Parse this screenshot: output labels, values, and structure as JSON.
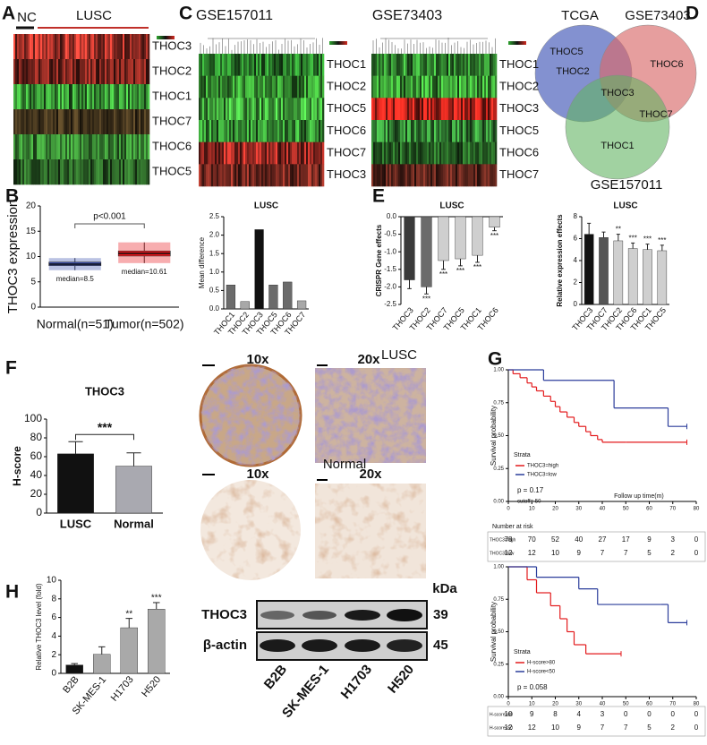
{
  "panel_labels": [
    "A",
    "B",
    "C",
    "D",
    "E",
    "F",
    "G",
    "H"
  ],
  "heatmap_a": {
    "groups": [
      {
        "label": "NC",
        "color": "#111111"
      },
      {
        "label": "LUSC",
        "color": "#c0302a"
      }
    ],
    "rows": [
      {
        "label": "THOC3",
        "color": "#c23a30"
      },
      {
        "label": "THOC2",
        "color": "#8a2a22"
      },
      {
        "label": "THOC1",
        "color": "#3da03a"
      },
      {
        "label": "THOC7",
        "color": "#4a3a20"
      },
      {
        "label": "THOC6",
        "color": "#3a8a35"
      },
      {
        "label": "THOC5",
        "color": "#2f6a2a"
      }
    ]
  },
  "heatmap_c": [
    {
      "title": "GSE157011",
      "rows": [
        {
          "label": "THOC1",
          "color": "#2f8a30"
        },
        {
          "label": "THOC2",
          "color": "#3a9a35"
        },
        {
          "label": "THOC5",
          "color": "#45b040"
        },
        {
          "label": "THOC6",
          "color": "#3a9a38"
        },
        {
          "label": "THOC7",
          "color": "#b03028"
        },
        {
          "label": "THOC3",
          "color": "#8a3026"
        }
      ]
    },
    {
      "title": "GSE73403",
      "rows": [
        {
          "label": "THOC1",
          "color": "#3a9a38"
        },
        {
          "label": "THOC2",
          "color": "#40a83a"
        },
        {
          "label": "THOC3",
          "color": "#d0281f"
        },
        {
          "label": "THOC5",
          "color": "#38903a"
        },
        {
          "label": "THOC6",
          "color": "#2a6a28"
        },
        {
          "label": "THOC7",
          "color": "#6a2a20"
        }
      ]
    }
  ],
  "venn": {
    "sets": [
      {
        "label": "TCGA",
        "color": "#5a6cc0"
      },
      {
        "label": "GSE73403",
        "color": "#d86a6a"
      },
      {
        "label": "GSE157011",
        "color": "#62b462"
      }
    ],
    "items": [
      "THOC5",
      "THOC2",
      "THOC6",
      "THOC3",
      "THOC7",
      "THOC1"
    ]
  },
  "ihc": {
    "mags": [
      "10x",
      "20x"
    ],
    "groups": [
      "LUSC",
      "Normal"
    ]
  },
  "western": {
    "unit": "kDa",
    "bands": [
      {
        "label": "THOC3",
        "size": 39
      },
      {
        "label": "β-actin",
        "size": 45
      }
    ],
    "lanes": [
      "B2B",
      "SK-MES-1",
      "H1703",
      "H520"
    ]
  },
  "chart_data": [
    {
      "type": "box",
      "y_label": "THOC3 expression",
      "categories": [
        "Normal(n=51)",
        "Tumor(n=502)"
      ],
      "colors": [
        "#3a4fb0",
        "#e8141a"
      ],
      "medians": [
        8.5,
        10.61
      ],
      "value_labels": [
        "median=8.5",
        "median=10.61"
      ],
      "q1": [
        8.2,
        10.1
      ],
      "q3": [
        8.9,
        11.1
      ],
      "whisker_low": [
        7.3,
        8.7
      ],
      "whisker_high": [
        9.7,
        12.8
      ],
      "annotation": "p<0.001",
      "ylim": [
        0,
        20
      ],
      "yticks": [
        0,
        5,
        10,
        15,
        20
      ]
    },
    {
      "type": "bar",
      "title": "LUSC",
      "y_label": "Mean difference",
      "categories": [
        "THOC1",
        "THOC2",
        "THOC3",
        "THOC5",
        "THOC6",
        "THOC7"
      ],
      "values": [
        0.65,
        0.2,
        2.15,
        0.65,
        0.73,
        0.22
      ],
      "colors": [
        "#6b6b6b",
        "#a8a8a8",
        "#111111",
        "#6b6b6b",
        "#6b6b6b",
        "#a8a8a8"
      ],
      "ylim": [
        0,
        2.5
      ],
      "yticks": [
        {
          "value": 0,
          "label": "0.0"
        },
        0.5,
        {
          "value": 1,
          "label": "1.0"
        },
        1.5,
        {
          "value": 2,
          "label": "2.0"
        },
        2.5
      ]
    },
    {
      "type": "bar_error",
      "title": "LUSC",
      "y_label": "CRISPR Gene effects",
      "categories": [
        "THOC3",
        "THOC2",
        "THOC7",
        "THOC5",
        "THOC1",
        "THOC6"
      ],
      "values": [
        -1.8,
        -2.0,
        -1.25,
        -1.2,
        -1.1,
        -0.3
      ],
      "errors": [
        0.25,
        0.2,
        0.25,
        0.2,
        0.2,
        0.1
      ],
      "colors": [
        "#3a3a3a",
        "#6b6b6b",
        "#cfcfcf",
        "#cfcfcf",
        "#cfcfcf",
        "#cfcfcf"
      ],
      "stars": [
        null,
        "***",
        "***",
        "***",
        "***",
        "***"
      ],
      "ylim": [
        -2.5,
        0
      ],
      "yticks": [
        {
          "value": 0,
          "label": "0.0"
        },
        -0.5,
        {
          "value": -1,
          "label": "-1.0"
        },
        -1.5,
        {
          "value": -2,
          "label": "-2.0"
        },
        -2.5
      ]
    },
    {
      "type": "bar_error",
      "title": "LUSC",
      "y_label": "Relative expression effects",
      "categories": [
        "THOC3",
        "THOC7",
        "THOC2",
        "THOC6",
        "THOC1",
        "THOC5"
      ],
      "values": [
        6.4,
        6.1,
        5.8,
        5.1,
        5.0,
        4.9
      ],
      "errors": [
        1.0,
        0.5,
        0.6,
        0.5,
        0.5,
        0.5
      ],
      "colors": [
        "#111111",
        "#555555",
        "#cfcfcf",
        "#cfcfcf",
        "#cfcfcf",
        "#cfcfcf"
      ],
      "stars": [
        null,
        null,
        "**",
        "***",
        "***",
        "***"
      ],
      "ylim": [
        0,
        8
      ],
      "yticks": [
        0,
        2,
        4,
        6,
        8
      ]
    },
    {
      "type": "bar_error",
      "title": "THOC3",
      "y_label": "H-score",
      "categories": [
        "LUSC",
        "Normal"
      ],
      "values": [
        63,
        50
      ],
      "errors": [
        13,
        14
      ],
      "colors": [
        "#111111",
        "#a9a9b0"
      ],
      "annotation": "***",
      "ylim": [
        0,
        100
      ],
      "yticks": [
        0,
        20,
        40,
        60,
        80,
        100
      ]
    },
    {
      "type": "km",
      "y_label": "Survival probability",
      "x_label": "Follow up time(m)",
      "legend_title": "Strata",
      "p_text": "p = 0.17",
      "cutoff_text": "cutoff= 50",
      "series": [
        {
          "name": "THOC3=high",
          "color": "#e31a1c",
          "x": [
            0,
            2,
            5,
            8,
            10,
            12,
            15,
            18,
            20,
            22,
            25,
            28,
            30,
            33,
            35,
            38,
            40,
            50,
            76
          ],
          "values": [
            1,
            0.97,
            0.94,
            0.9,
            0.87,
            0.84,
            0.8,
            0.76,
            0.72,
            0.68,
            0.64,
            0.6,
            0.57,
            0.53,
            0.5,
            0.47,
            0.45,
            0.45,
            0.45
          ]
        },
        {
          "name": "THOC3=low",
          "color": "#2b3d9b",
          "x": [
            0,
            15,
            45,
            68,
            76
          ],
          "values": [
            1,
            0.92,
            0.71,
            0.57,
            0.57
          ]
        }
      ],
      "xlim": [
        0,
        80
      ],
      "xticks": [
        0,
        10,
        20,
        30,
        40,
        50,
        60,
        70,
        80
      ],
      "ylim": [
        0,
        1
      ],
      "yticks": [
        {
          "value": 0,
          "label": "0.00"
        },
        0.25,
        {
          "value": 0.5,
          "label": "0.50"
        },
        0.75,
        {
          "value": 1,
          "label": "1.00"
        }
      ],
      "risk_table": {
        "title": "Number at risk",
        "rows": [
          {
            "name": "THOC3=high",
            "color": "#e31a1c",
            "values": [
              78,
              70,
              52,
              40,
              27,
              17,
              9,
              3,
              0
            ]
          },
          {
            "name": "THOC3=low",
            "color": "#2b3d9b",
            "values": [
              12,
              12,
              10,
              9,
              7,
              7,
              5,
              2,
              0
            ]
          }
        ]
      }
    },
    {
      "type": "km",
      "y_label": "Survival probability",
      "legend_title": "Strata",
      "p_text": "p = 0.058",
      "series": [
        {
          "name": "H-score>80",
          "color": "#e31a1c",
          "x": [
            0,
            8,
            12,
            18,
            22,
            25,
            28,
            33,
            48
          ],
          "values": [
            1,
            0.9,
            0.8,
            0.7,
            0.6,
            0.5,
            0.4,
            0.33,
            0.33
          ]
        },
        {
          "name": "H-score<50",
          "color": "#2b3d9b",
          "x": [
            0,
            12,
            30,
            38,
            65,
            68,
            76
          ],
          "values": [
            1,
            0.92,
            0.83,
            0.71,
            0.71,
            0.57,
            0.57
          ]
        }
      ],
      "xlim": [
        0,
        80
      ],
      "xticks": [
        0,
        10,
        20,
        30,
        40,
        50,
        60,
        70,
        80
      ],
      "ylim": [
        0,
        1
      ],
      "yticks": [
        {
          "value": 0,
          "label": "0.00"
        },
        0.25,
        {
          "value": 0.5,
          "label": "0.50"
        },
        0.75,
        {
          "value": 1,
          "label": "1.00"
        }
      ],
      "risk_table": {
        "rows": [
          {
            "name": "H-score>80",
            "color": "#e31a1c",
            "values": [
              10,
              9,
              8,
              4,
              3,
              0,
              0,
              0,
              0
            ]
          },
          {
            "name": "H-score<50",
            "color": "#2b3d9b",
            "values": [
              12,
              12,
              10,
              9,
              7,
              7,
              5,
              2,
              0
            ]
          }
        ]
      }
    },
    {
      "type": "bar_error",
      "y_label": "Relative THOC3 level (fold)",
      "categories": [
        "B2B",
        "SK-MES-1",
        "H1703",
        "H520"
      ],
      "values": [
        0.9,
        2.05,
        4.9,
        6.9
      ],
      "errors": [
        0.15,
        0.8,
        1.0,
        0.7
      ],
      "colors": [
        "#111111",
        "#a9a9a9",
        "#a9a9a9",
        "#a9a9a9"
      ],
      "stars": [
        null,
        null,
        "**",
        "***"
      ],
      "ylim": [
        0,
        10
      ],
      "yticks": [
        0,
        2,
        4,
        6,
        8,
        10
      ]
    }
  ]
}
